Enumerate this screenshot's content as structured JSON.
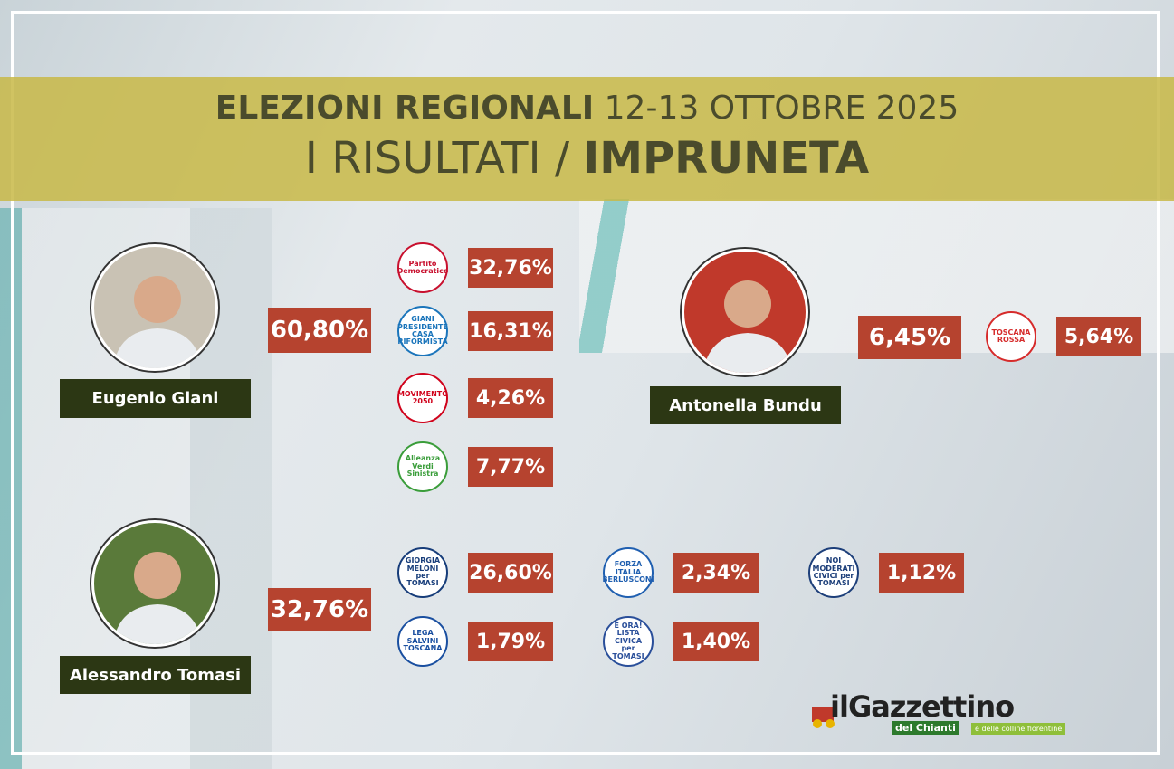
{
  "header": {
    "title_bold": "ELEZIONI REGIONALI",
    "title_date": "12-13 OTTOBRE 2025",
    "subtitle": "I RISULTATI /",
    "place": "IMPRUNETA"
  },
  "candidates": [
    {
      "name": "Eugenio Giani",
      "percent": "60,80%",
      "photo_color": "#c9c2b4",
      "lists": [
        {
          "logo": "Partito Democratico",
          "color": "#c8102e",
          "percent": "32,76%"
        },
        {
          "logo": "GIANI PRESIDENTE CASA RIFORMISTA",
          "color": "#1b75bb",
          "percent": "16,31%"
        },
        {
          "logo": "MOVIMENTO 2050",
          "color": "#d0021b",
          "percent": "4,26%"
        },
        {
          "logo": "Alleanza Verdi Sinistra",
          "color": "#3a9d3a",
          "percent": "7,77%"
        }
      ]
    },
    {
      "name": "Antonella Bundu",
      "percent": "6,45%",
      "photo_color": "#c0392b",
      "lists": [
        {
          "logo": "TOSCANA ROSSA",
          "color": "#d62b2b",
          "percent": "5,64%"
        }
      ]
    },
    {
      "name": "Alessandro Tomasi",
      "percent": "32,76%",
      "photo_color": "#5a7a3a",
      "lists": [
        {
          "logo": "GIORGIA MELONI per TOMASI",
          "color": "#173d7a",
          "percent": "26,60%"
        },
        {
          "logo": "LEGA SALVINI TOSCANA",
          "color": "#1a4fa0",
          "percent": "1,79%"
        },
        {
          "logo": "FORZA ITALIA BERLUSCONI",
          "color": "#1f5fb0",
          "percent": "2,34%"
        },
        {
          "logo": "È ORA! LISTA CIVICA per TOMASI",
          "color": "#2a4f9a",
          "percent": "1,40%"
        },
        {
          "logo": "NOI MODERATI CIVICI per TOMASI",
          "color": "#1d3f7a",
          "percent": "1,12%"
        }
      ]
    }
  ],
  "brand": {
    "name": "ilGazzettino",
    "tagline": "del Chianti",
    "sub": "e delle colline fiorentine"
  }
}
